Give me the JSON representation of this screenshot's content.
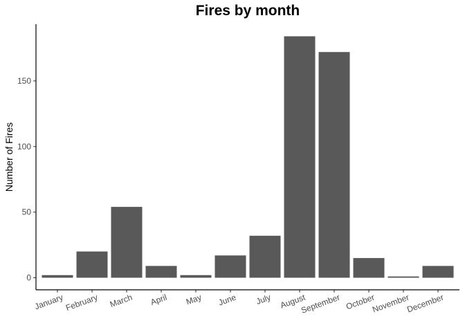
{
  "chart_data": {
    "type": "bar",
    "title": "Fires by month",
    "xlabel": "",
    "ylabel": "Number of Fires",
    "categories": [
      "January",
      "February",
      "March",
      "April",
      "May",
      "June",
      "July",
      "August",
      "September",
      "October",
      "November",
      "December"
    ],
    "values": [
      2,
      20,
      54,
      9,
      2,
      17,
      32,
      184,
      172,
      15,
      1,
      9
    ],
    "ylim": [
      -9.2,
      193.2
    ],
    "yticks": [
      0,
      50,
      100,
      150
    ],
    "grid": false,
    "bar_color": "#595959",
    "background": "#ffffff"
  }
}
